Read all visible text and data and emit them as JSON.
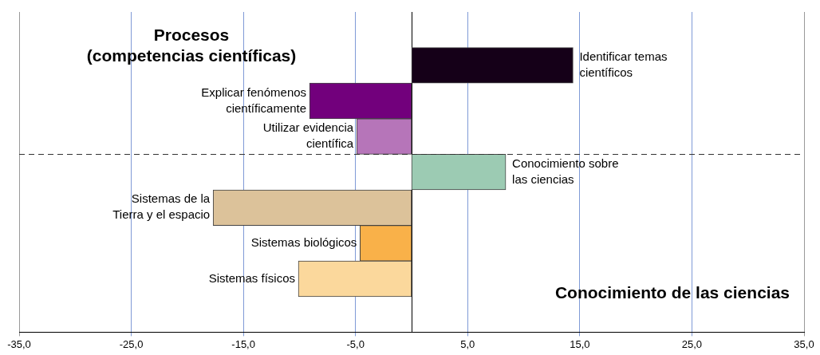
{
  "chart_data": {
    "type": "bar",
    "orientation": "horizontal",
    "categories": [
      null,
      "Identificar temas\ncientíficos",
      "Explicar fenómenos\ncientíficamente",
      "Utilizar evidencia\ncientífica",
      "Conocimiento sobre\nlas ciencias",
      "Sistemas de la\nTierra y el espacio",
      "Sistemas biológicos",
      "Sistemas físicos",
      null
    ],
    "values": [
      null,
      14.4,
      -9.1,
      -4.9,
      8.4,
      -17.7,
      -4.6,
      -10.1,
      null
    ],
    "colors": [
      "#ffffff",
      "#150018",
      "#72007c",
      "#b675b9",
      "#9ccbb3",
      "#dcc29a",
      "#f9b149",
      "#fbd89c",
      "#ffffff"
    ],
    "xlim": [
      -35,
      35
    ],
    "xticks": [
      {
        "value": -35,
        "label": "-35,0"
      },
      {
        "value": -25,
        "label": "-25,0"
      },
      {
        "value": -15,
        "label": "-15,0"
      },
      {
        "value": -5,
        "label": "-5,0"
      },
      {
        "value": 5,
        "label": "5,0"
      },
      {
        "value": 15,
        "label": "15,0"
      },
      {
        "value": 25,
        "label": "25,0"
      },
      {
        "value": 35,
        "label": "35,0"
      }
    ],
    "grid": "x",
    "legend": false,
    "tick_labels": "x",
    "annotations": [
      "Procesos\n(competencias científicas)",
      "Conocimiento de las ciencias"
    ]
  }
}
